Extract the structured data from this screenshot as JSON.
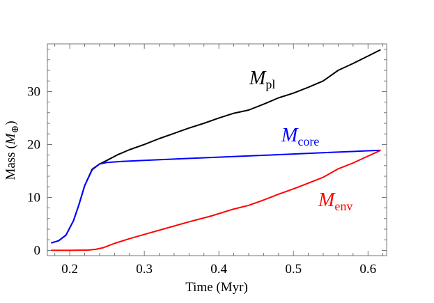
{
  "chart_data": {
    "type": "line",
    "xlabel": "Time (Myr)",
    "ylabel": "Mass (M⊕)",
    "ylabel_parts": {
      "prefix": "Mass (",
      "italic": "M",
      "sub": "⊕",
      "suffix": ")"
    },
    "xlim": [
      0.17,
      0.625
    ],
    "ylim": [
      -1,
      39
    ],
    "x_ticks": [
      0.2,
      0.3,
      0.4,
      0.5,
      0.6
    ],
    "x_tick_labels": [
      "0.2",
      "0.3",
      "0.4",
      "0.5",
      "0.6"
    ],
    "y_ticks": [
      0,
      10,
      20,
      30
    ],
    "y_tick_labels": [
      "0",
      "10",
      "20",
      "30"
    ],
    "grid": false,
    "series": [
      {
        "name": "Mpl",
        "label_main": "M",
        "label_sub": "pl",
        "color": "#000000",
        "points": [
          [
            0.175,
            1.4
          ],
          [
            0.185,
            1.8
          ],
          [
            0.195,
            2.9
          ],
          [
            0.205,
            5.6
          ],
          [
            0.212,
            8.5
          ],
          [
            0.22,
            12.2
          ],
          [
            0.23,
            15.3
          ],
          [
            0.24,
            16.3
          ],
          [
            0.25,
            17.0
          ],
          [
            0.265,
            18.1
          ],
          [
            0.28,
            19.0
          ],
          [
            0.3,
            20.0
          ],
          [
            0.32,
            21.1
          ],
          [
            0.34,
            22.1
          ],
          [
            0.36,
            23.1
          ],
          [
            0.38,
            24.0
          ],
          [
            0.4,
            25.0
          ],
          [
            0.42,
            25.9
          ],
          [
            0.44,
            26.5
          ],
          [
            0.46,
            27.6
          ],
          [
            0.48,
            28.8
          ],
          [
            0.5,
            29.7
          ],
          [
            0.52,
            30.8
          ],
          [
            0.54,
            32.0
          ],
          [
            0.56,
            34.0
          ],
          [
            0.58,
            35.3
          ],
          [
            0.6,
            36.7
          ],
          [
            0.617,
            37.9
          ]
        ]
      },
      {
        "name": "Mcore",
        "label_main": "M",
        "label_sub": "core",
        "color": "#0000ff",
        "points": [
          [
            0.175,
            1.4
          ],
          [
            0.185,
            1.8
          ],
          [
            0.195,
            2.9
          ],
          [
            0.205,
            5.6
          ],
          [
            0.212,
            8.5
          ],
          [
            0.22,
            12.2
          ],
          [
            0.23,
            15.2
          ],
          [
            0.24,
            16.3
          ],
          [
            0.25,
            16.6
          ],
          [
            0.27,
            16.8
          ],
          [
            0.3,
            17.0
          ],
          [
            0.35,
            17.3
          ],
          [
            0.4,
            17.6
          ],
          [
            0.45,
            17.9
          ],
          [
            0.5,
            18.2
          ],
          [
            0.55,
            18.5
          ],
          [
            0.6,
            18.8
          ],
          [
            0.617,
            18.9
          ]
        ]
      },
      {
        "name": "Menv",
        "label_main": "M",
        "label_sub": "env",
        "color": "#ff0000",
        "points": [
          [
            0.175,
            0.0
          ],
          [
            0.2,
            0.0
          ],
          [
            0.225,
            0.05
          ],
          [
            0.235,
            0.2
          ],
          [
            0.245,
            0.5
          ],
          [
            0.26,
            1.3
          ],
          [
            0.28,
            2.2
          ],
          [
            0.3,
            3.0
          ],
          [
            0.33,
            4.2
          ],
          [
            0.36,
            5.4
          ],
          [
            0.39,
            6.5
          ],
          [
            0.42,
            7.8
          ],
          [
            0.44,
            8.5
          ],
          [
            0.46,
            9.5
          ],
          [
            0.48,
            10.6
          ],
          [
            0.5,
            11.6
          ],
          [
            0.52,
            12.7
          ],
          [
            0.54,
            13.8
          ],
          [
            0.56,
            15.4
          ],
          [
            0.58,
            16.5
          ],
          [
            0.6,
            17.8
          ],
          [
            0.617,
            18.9
          ]
        ]
      }
    ]
  }
}
